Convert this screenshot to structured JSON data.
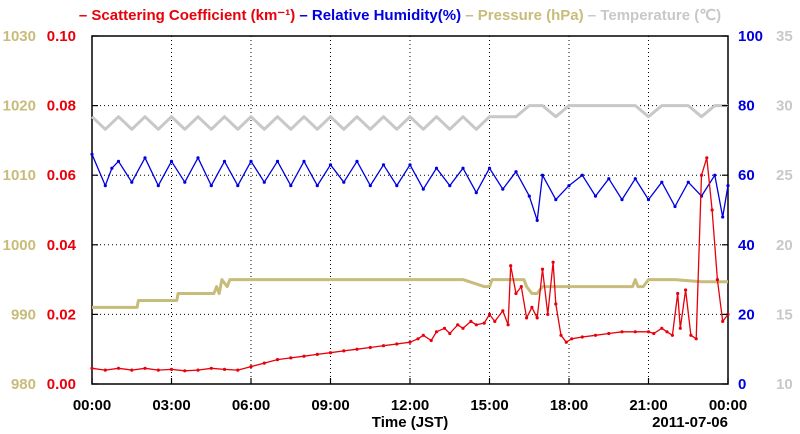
{
  "chart_data": {
    "type": "line",
    "xlabel": "Time (JST)",
    "date_label": "2011-07-06",
    "x_ticks": [
      "00:00",
      "03:00",
      "06:00",
      "09:00",
      "12:00",
      "15:00",
      "18:00",
      "21:00",
      "00:00"
    ],
    "x_range_hours": [
      0,
      24
    ],
    "grid": true,
    "legend_position": "top",
    "axes": {
      "pressure": {
        "ylim": [
          980,
          1030
        ],
        "ticks": [
          "980",
          "990",
          "1000",
          "1010",
          "1020",
          "1030"
        ],
        "color": "#c8bc7a",
        "side": "left-outer"
      },
      "scattering": {
        "ylim": [
          0,
          0.1
        ],
        "ticks": [
          "0.00",
          "0.02",
          "0.04",
          "0.06",
          "0.08",
          "0.10"
        ],
        "color": "#e8000b",
        "side": "left-inner"
      },
      "humidity": {
        "ylim": [
          0,
          100
        ],
        "ticks": [
          "0",
          "20",
          "40",
          "60",
          "80",
          "100"
        ],
        "color": "#0000e0",
        "side": "right-inner"
      },
      "temperature": {
        "ylim": [
          10,
          35
        ],
        "ticks": [
          "10",
          "15",
          "20",
          "25",
          "30",
          "35"
        ],
        "color": "#c8c8c8",
        "side": "right-outer"
      }
    },
    "series": [
      {
        "name": "Scattering Coefficient (km⁻¹)",
        "axis": "scattering",
        "color": "#e8000b",
        "x": [
          0,
          0.5,
          1,
          1.5,
          2,
          2.5,
          3,
          3.5,
          4,
          4.5,
          5,
          5.5,
          6,
          6.5,
          7,
          7.5,
          8,
          8.5,
          9,
          9.5,
          10,
          10.5,
          11,
          11.5,
          12,
          12.3,
          12.5,
          12.8,
          13,
          13.3,
          13.5,
          13.8,
          14,
          14.3,
          14.5,
          14.8,
          15,
          15.2,
          15.5,
          15.7,
          15.8,
          16,
          16.2,
          16.4,
          16.6,
          16.8,
          17,
          17.2,
          17.4,
          17.5,
          17.7,
          17.9,
          18.1,
          18.5,
          19,
          19.5,
          20,
          20.5,
          21,
          21.2,
          21.5,
          21.7,
          21.9,
          22.1,
          22.2,
          22.4,
          22.6,
          22.8,
          23,
          23.2,
          23.4,
          23.6,
          23.8,
          24
        ],
        "values": [
          0.0045,
          0.004,
          0.0045,
          0.004,
          0.0045,
          0.004,
          0.0042,
          0.0038,
          0.004,
          0.0045,
          0.0042,
          0.004,
          0.005,
          0.006,
          0.007,
          0.0075,
          0.008,
          0.0085,
          0.009,
          0.0095,
          0.01,
          0.0105,
          0.011,
          0.0115,
          0.012,
          0.013,
          0.014,
          0.0125,
          0.015,
          0.016,
          0.0145,
          0.017,
          0.016,
          0.018,
          0.017,
          0.0175,
          0.02,
          0.018,
          0.021,
          0.017,
          0.034,
          0.026,
          0.028,
          0.019,
          0.022,
          0.019,
          0.033,
          0.02,
          0.035,
          0.023,
          0.014,
          0.012,
          0.013,
          0.0135,
          0.014,
          0.0145,
          0.015,
          0.015,
          0.015,
          0.0145,
          0.016,
          0.015,
          0.014,
          0.026,
          0.016,
          0.027,
          0.014,
          0.013,
          0.06,
          0.065,
          0.05,
          0.03,
          0.018,
          0.02
        ]
      },
      {
        "name": "Relative Humidity(%)",
        "axis": "humidity",
        "color": "#0000e0",
        "x": [
          0,
          0.5,
          0.75,
          1,
          1.5,
          2,
          2.5,
          3,
          3.5,
          4,
          4.5,
          5,
          5.5,
          6,
          6.5,
          7,
          7.5,
          8,
          8.5,
          9,
          9.5,
          10,
          10.5,
          11,
          11.5,
          12,
          12.5,
          13,
          13.5,
          14,
          14.5,
          15,
          15.5,
          16,
          16.5,
          16.8,
          17,
          17.5,
          18,
          18.5,
          19,
          19.5,
          20,
          20.5,
          21,
          21.5,
          22,
          22.5,
          23,
          23.5,
          23.8,
          24
        ],
        "values": [
          66,
          57,
          62,
          64,
          58,
          65,
          57,
          64,
          58,
          65,
          57,
          64,
          57,
          64,
          58,
          64,
          57,
          64,
          57,
          63,
          58,
          64,
          57,
          63,
          57,
          63,
          56,
          62,
          57,
          62,
          55,
          62,
          56,
          61,
          54,
          47,
          60,
          53,
          57,
          60,
          54,
          59,
          53,
          59,
          53,
          58,
          51,
          58,
          54,
          60,
          48,
          57
        ]
      },
      {
        "name": "Pressure (hPa)",
        "axis": "pressure",
        "color": "#c8bc7a",
        "x": [
          0,
          1.7,
          1.75,
          3.2,
          3.25,
          4.6,
          4.7,
          4.8,
          4.9,
          5.1,
          5.2,
          8,
          10,
          12,
          14,
          14.8,
          15,
          15.1,
          16.3,
          16.4,
          16.6,
          16.8,
          17,
          18,
          19,
          20,
          20.4,
          20.5,
          20.6,
          20.8,
          21,
          22,
          23,
          24
        ],
        "values": [
          991,
          991,
          992,
          992,
          993,
          993,
          994,
          993,
          995,
          994,
          995,
          995,
          995,
          995,
          995,
          994,
          994,
          995,
          995,
          994,
          993,
          993,
          994,
          994,
          994,
          994,
          994,
          995,
          994,
          994,
          995,
          995,
          994.7,
          994.7
        ]
      },
      {
        "name": "Temperature (℃)",
        "axis": "temperature",
        "color": "#c8c8c8",
        "x": [
          0,
          0.5,
          1,
          1.5,
          2,
          2.5,
          3,
          3.5,
          4,
          4.5,
          5,
          5.5,
          6,
          6.5,
          7,
          7.5,
          8,
          8.5,
          9,
          9.5,
          10,
          10.5,
          11,
          11.5,
          12,
          12.5,
          13,
          13.5,
          14,
          14.5,
          15,
          15.5,
          16,
          16.5,
          17,
          17.5,
          18,
          18.5,
          19,
          19.5,
          20,
          20.5,
          21,
          21.5,
          22,
          22.5,
          23,
          23.5,
          24
        ],
        "values": [
          29.2,
          28.3,
          29.2,
          28.3,
          29.2,
          28.3,
          29.2,
          28.3,
          29.2,
          28.3,
          29.2,
          28.3,
          29.2,
          28.3,
          29.2,
          28.3,
          29.2,
          28.3,
          29.2,
          28.3,
          29.2,
          28.3,
          29.2,
          28.3,
          29.2,
          28.3,
          29.2,
          28.3,
          29.2,
          28.3,
          29.2,
          29.2,
          29.2,
          30,
          30,
          29.2,
          30,
          30,
          30,
          30,
          30,
          30,
          29.2,
          30,
          30,
          30,
          29.2,
          30,
          30
        ]
      }
    ]
  }
}
